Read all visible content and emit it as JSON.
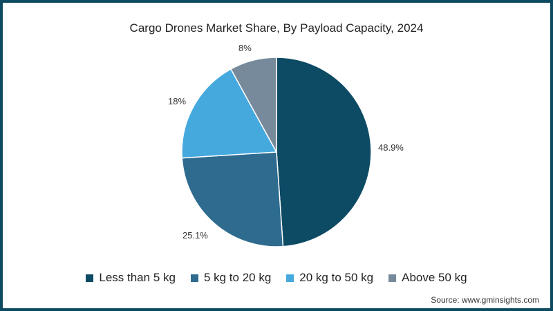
{
  "chart_data": {
    "type": "pie",
    "title": "Cargo Drones Market Share, By Payload Capacity, 2024",
    "categories": [
      "Less than 5 kg",
      "5 kg to 20 kg",
      "20 kg to 50 kg",
      "Above 50 kg"
    ],
    "values": [
      48.9,
      25.1,
      18,
      8
    ],
    "labels": [
      "48.9%",
      "25.1%",
      "18%",
      "8%"
    ],
    "colors": [
      "#0d4a63",
      "#2e6b8f",
      "#46a9de",
      "#778a9c"
    ],
    "start_angle": "12 o'clock, clockwise",
    "legend_position": "bottom"
  },
  "title": "Cargo Drones Market Share, By Payload Capacity, 2024",
  "labels": {
    "s0": "48.9%",
    "s1": "25.1%",
    "s2": "18%",
    "s3": "8%"
  },
  "legend": [
    {
      "label": "Less than 5 kg",
      "color": "#0d4a63"
    },
    {
      "label": "5 kg to 20 kg",
      "color": "#2e6b8f"
    },
    {
      "label": "20 kg to 50 kg",
      "color": "#46a9de"
    },
    {
      "label": "Above 50 kg",
      "color": "#778a9c"
    }
  ],
  "source": "Source: www.gminsights.com",
  "frame_color": "#0e4a60"
}
